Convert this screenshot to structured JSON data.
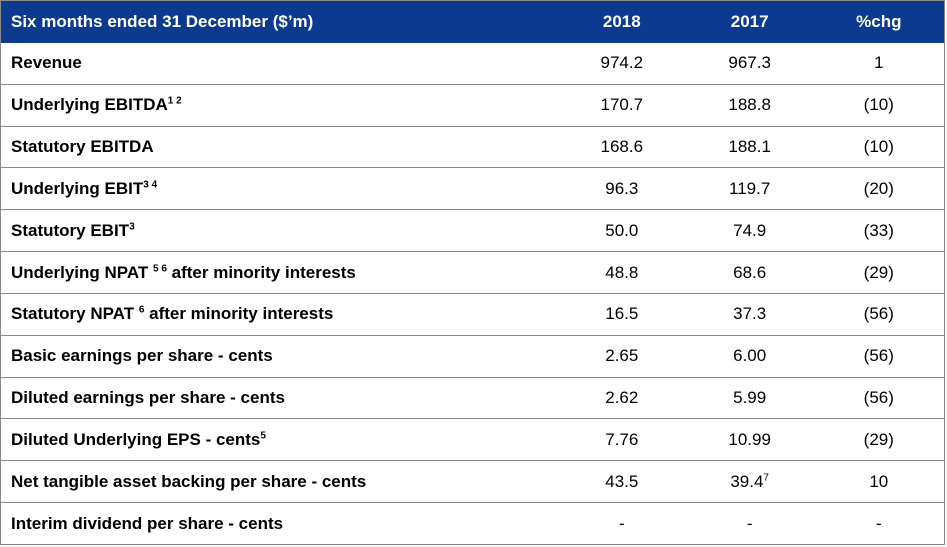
{
  "header": {
    "label": "Six months ended 31 December ($’m)",
    "col_2018": "2018",
    "col_2017": "2017",
    "col_chg": "%chg"
  },
  "rows": [
    {
      "label": "Revenue",
      "sup": "",
      "label_after": "",
      "v2018": "974.2",
      "v2017": "967.3",
      "v2017_sup": "",
      "chg": "1"
    },
    {
      "label": "Underlying EBITDA",
      "sup": "1 2",
      "label_after": "",
      "v2018": "170.7",
      "v2017": "188.8",
      "v2017_sup": "",
      "chg": "(10)"
    },
    {
      "label": "Statutory EBITDA",
      "sup": "",
      "label_after": "",
      "v2018": "168.6",
      "v2017": "188.1",
      "v2017_sup": "",
      "chg": "(10)"
    },
    {
      "label": "Underlying EBIT",
      "sup": "3 4",
      "label_after": "",
      "v2018": "96.3",
      "v2017": "119.7",
      "v2017_sup": "",
      "chg": "(20)"
    },
    {
      "label": "Statutory EBIT",
      "sup": "3",
      "label_after": "",
      "v2018": "50.0",
      "v2017": "74.9",
      "v2017_sup": "",
      "chg": "(33)"
    },
    {
      "label": "Underlying NPAT ",
      "sup": "5 6",
      "label_after": " after minority interests",
      "v2018": "48.8",
      "v2017": "68.6",
      "v2017_sup": "",
      "chg": "(29)"
    },
    {
      "label": "Statutory NPAT ",
      "sup": "6",
      "label_after": " after minority interests",
      "v2018": "16.5",
      "v2017": "37.3",
      "v2017_sup": "",
      "chg": "(56)"
    },
    {
      "label": "Basic earnings per share - cents",
      "sup": "",
      "label_after": "",
      "v2018": "2.65",
      "v2017": "6.00",
      "v2017_sup": "",
      "chg": "(56)"
    },
    {
      "label": "Diluted earnings per share - cents",
      "sup": "",
      "label_after": "",
      "v2018": "2.62",
      "v2017": "5.99",
      "v2017_sup": "",
      "chg": "(56)"
    },
    {
      "label": "Diluted Underlying EPS - cents",
      "sup": "5",
      "label_after": "",
      "v2018": "7.76",
      "v2017": "10.99",
      "v2017_sup": "",
      "chg": "(29)"
    },
    {
      "label": "Net tangible asset backing per share - cents",
      "sup": "",
      "label_after": "",
      "v2018": "43.5",
      "v2017": "39.4",
      "v2017_sup": "7",
      "chg": "10"
    },
    {
      "label": "Interim dividend per share - cents",
      "sup": "",
      "label_after": "",
      "v2018": "-",
      "v2017": "-",
      "v2017_sup": "",
      "chg": "-"
    }
  ]
}
